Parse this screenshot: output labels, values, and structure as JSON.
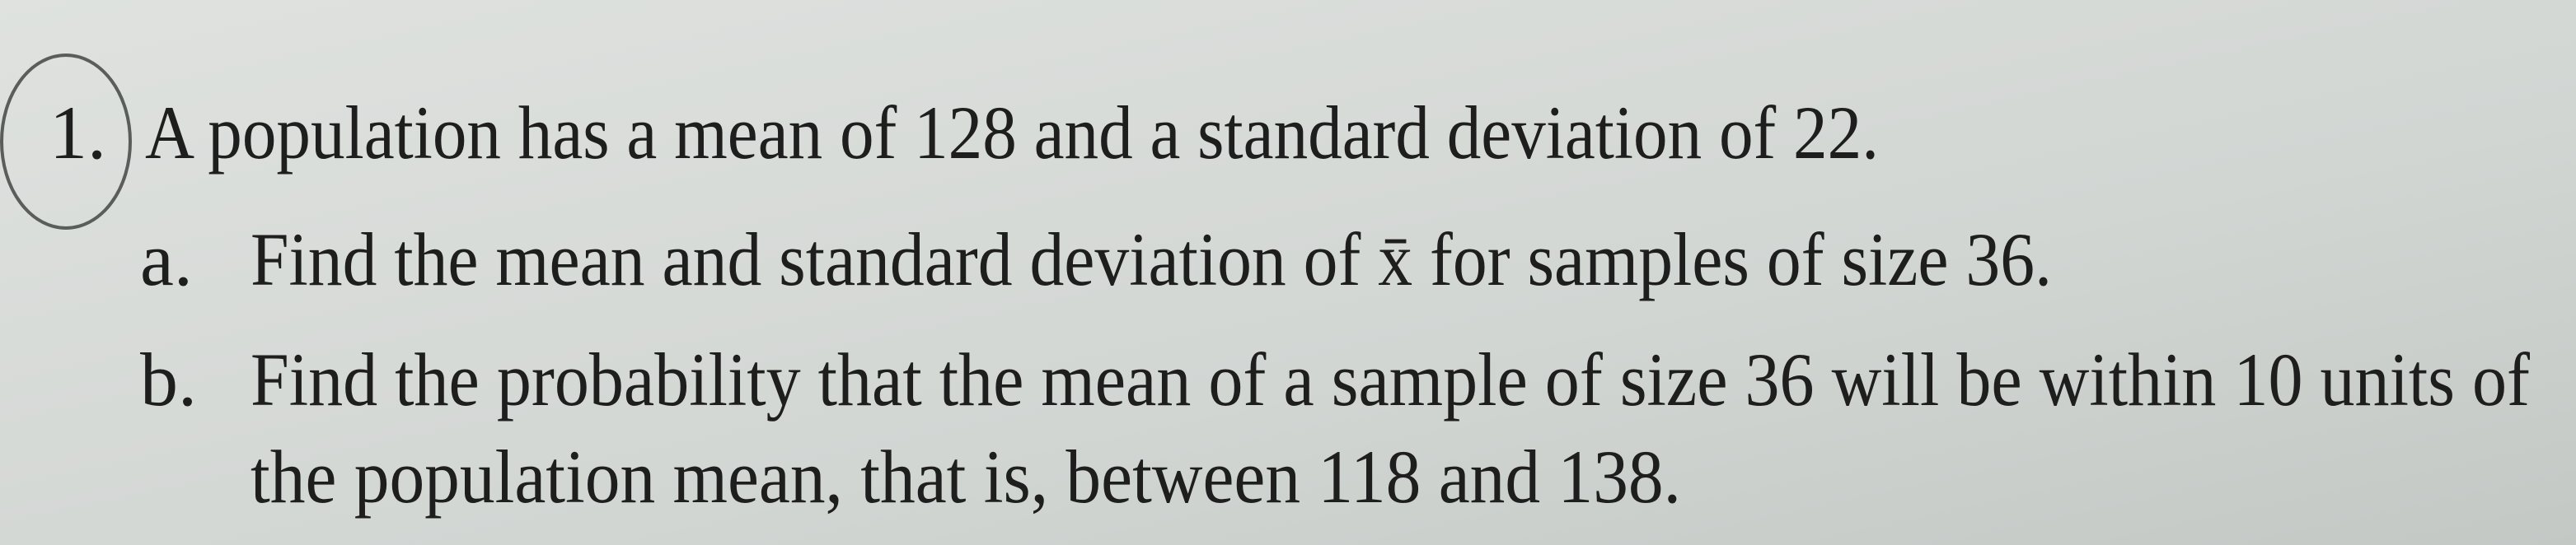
{
  "question": {
    "number": "1.",
    "text": "A population has a mean of 128 and a standard deviation of 22.",
    "parts": [
      {
        "label": "a.",
        "lines": [
          "Find the mean and standard deviation of x̄ for samples of size 36."
        ]
      },
      {
        "label": "b.",
        "lines": [
          "Find the probability that the mean of a sample of size 36 will be within 10 units of",
          "the population mean, that is, between 118 and 138."
        ]
      }
    ]
  }
}
